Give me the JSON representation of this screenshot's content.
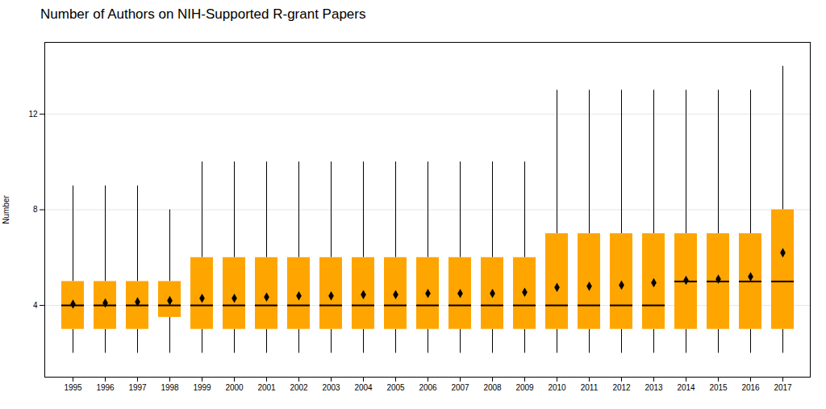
{
  "chart_data": {
    "type": "box",
    "title": "Number of Authors on NIH-Supported R-grant Papers",
    "ylabel": "Number",
    "categories": [
      "1995",
      "1996",
      "1997",
      "1998",
      "1999",
      "2000",
      "2001",
      "2002",
      "2003",
      "2004",
      "2005",
      "2006",
      "2007",
      "2008",
      "2009",
      "2010",
      "2011",
      "2012",
      "2013",
      "2014",
      "2015",
      "2016",
      "2017"
    ],
    "q1": [
      3,
      3,
      3,
      3.5,
      3,
      3,
      3,
      3,
      3,
      3,
      3,
      3,
      3,
      3,
      3,
      3,
      3,
      3,
      3,
      3,
      3,
      3,
      3
    ],
    "median": [
      4,
      4,
      4,
      4,
      4,
      4,
      4,
      4,
      4,
      4,
      4,
      4,
      4,
      4,
      4,
      4,
      4,
      4,
      4,
      5,
      5,
      5,
      5
    ],
    "q3": [
      5,
      5,
      5,
      5,
      6,
      6,
      6,
      6,
      6,
      6,
      6,
      6,
      6,
      6,
      6,
      7,
      7,
      7,
      7,
      7,
      7,
      7,
      8
    ],
    "whislo": [
      2,
      2,
      2,
      2,
      2,
      2,
      2,
      2,
      2,
      2,
      2,
      2,
      2,
      2,
      2,
      2,
      2,
      2,
      2,
      2,
      2,
      2,
      2
    ],
    "whishi": [
      9,
      9,
      9,
      8,
      10,
      10,
      10,
      10,
      10,
      10,
      10,
      10,
      10,
      10,
      10,
      13,
      13,
      13,
      13,
      13,
      13,
      13,
      14
    ],
    "mean": [
      4.05,
      4.1,
      4.15,
      4.2,
      4.3,
      4.3,
      4.35,
      4.4,
      4.4,
      4.45,
      4.45,
      4.5,
      4.5,
      4.5,
      4.55,
      4.75,
      4.8,
      4.85,
      4.95,
      5.05,
      5.1,
      5.2,
      6.2
    ],
    "color": "#FFA500",
    "ylim": [
      1,
      15
    ],
    "yticks": [
      4,
      8,
      12
    ],
    "grid": true
  }
}
